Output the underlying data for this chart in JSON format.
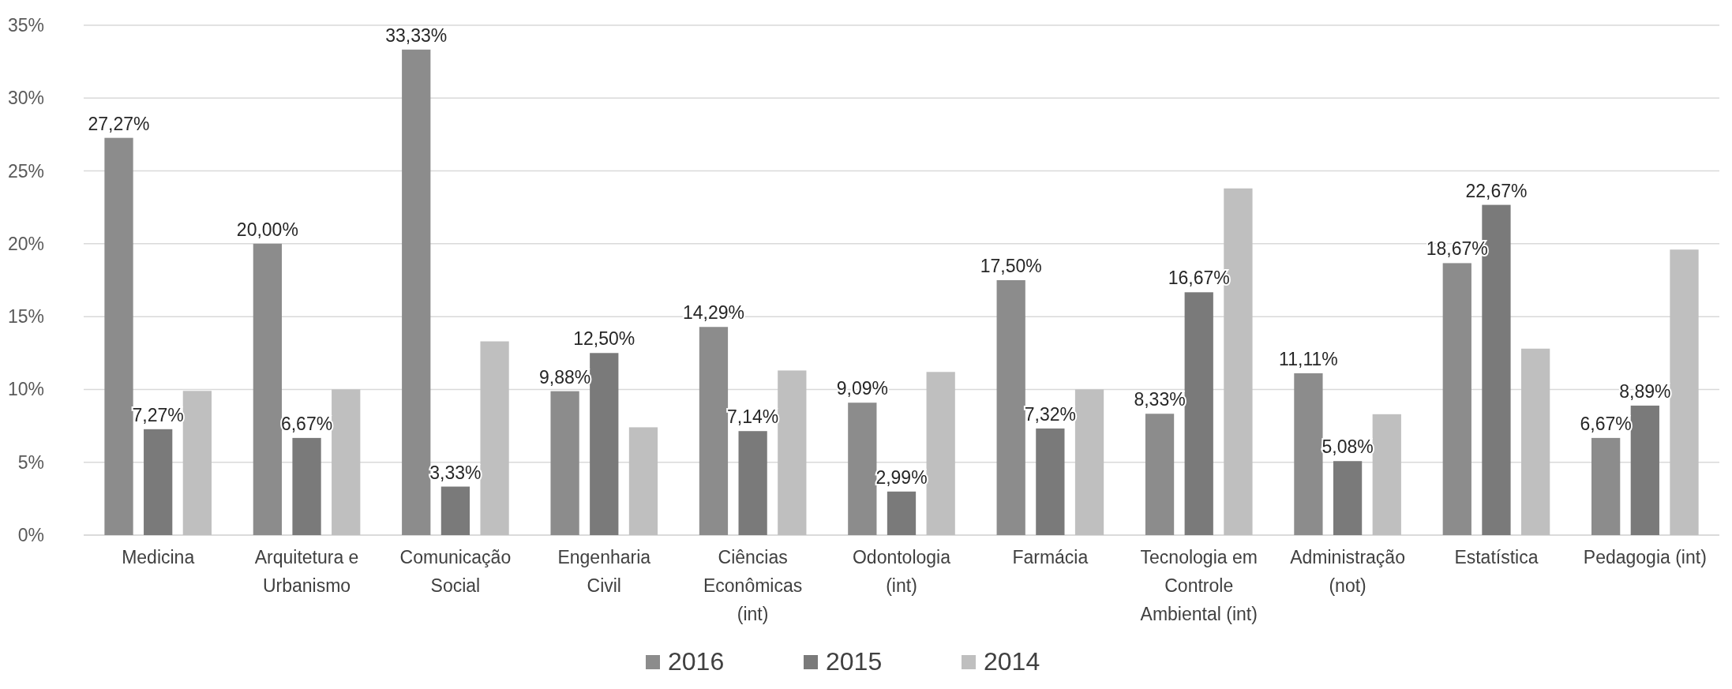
{
  "chart_data": {
    "type": "bar",
    "categories": [
      "Medicina",
      "Arquitetura e Urbanismo",
      "Comunicação Social",
      "Engenharia Civil",
      "Ciências Econômicas (int)",
      "Odontologia (int)",
      "Farmácia",
      "Tecnologia em Controle Ambiental (int)",
      "Administração (not)",
      "Estatística",
      "Pedagogia (int)"
    ],
    "series": [
      {
        "name": "2016",
        "color": "#8c8c8c",
        "values": [
          27.27,
          20.0,
          33.33,
          9.88,
          14.29,
          9.09,
          17.5,
          8.33,
          11.11,
          18.67,
          6.67
        ],
        "value_labels": [
          "27,27%",
          "20,00%",
          "33,33%",
          "9,88%",
          "14,29%",
          "9,09%",
          "17,50%",
          "8,33%",
          "11,11%",
          "18,67%",
          "6,67%"
        ]
      },
      {
        "name": "2015",
        "color": "#7a7a7a",
        "values": [
          7.27,
          6.67,
          3.33,
          12.5,
          7.14,
          2.99,
          7.32,
          16.67,
          5.08,
          22.67,
          8.89
        ],
        "value_labels": [
          "7,27%",
          "6,67%",
          "3,33%",
          "12,50%",
          "7,14%",
          "2,99%",
          "7,32%",
          "16,67%",
          "5,08%",
          "22,67%",
          "8,89%"
        ]
      },
      {
        "name": "2014",
        "color": "#bfbfbf",
        "values": [
          9.9,
          10.0,
          13.3,
          7.4,
          11.3,
          11.2,
          10.0,
          23.8,
          8.3,
          12.8,
          19.6
        ]
      }
    ],
    "ylim": [
      0,
      35
    ],
    "yticks": [
      {
        "value": 0,
        "label": "0%"
      },
      {
        "value": 5,
        "label": "5%"
      },
      {
        "value": 10,
        "label": "10%"
      },
      {
        "value": 15,
        "label": "15%"
      },
      {
        "value": 20,
        "label": "20%"
      },
      {
        "value": 25,
        "label": "25%"
      },
      {
        "value": 30,
        "label": "30%"
      },
      {
        "value": 35,
        "label": "35%"
      }
    ],
    "grid": "y",
    "legend": "bottom"
  }
}
